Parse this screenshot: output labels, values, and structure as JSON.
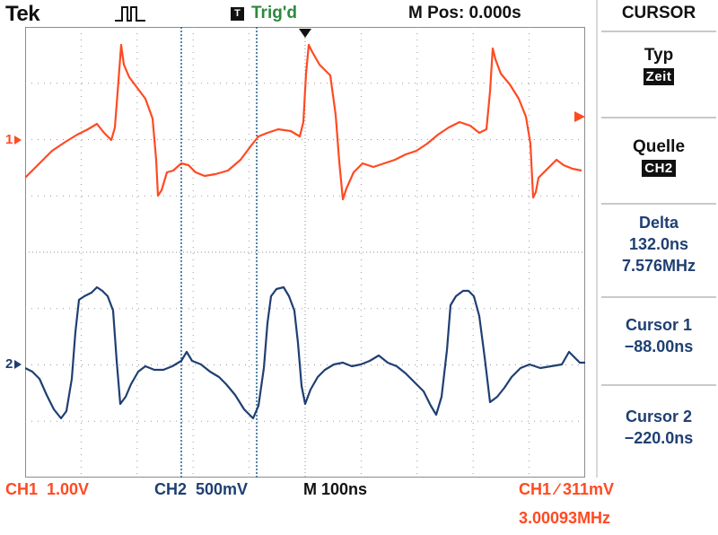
{
  "header": {
    "brand": "Tek",
    "acquisition_icon": "pulse-run-icon",
    "trigger_badge": "T",
    "trigger_status": "Trig'd",
    "main_position": "M Pos: 0.000s"
  },
  "menu": {
    "title": "CURSOR",
    "type_label": "Typ",
    "type_value": "Zeit",
    "source_label": "Quelle",
    "source_value": "CH2",
    "delta_label": "Delta",
    "delta_time": "132.0ns",
    "delta_freq": "7.576MHz",
    "cursor1_label": "Cursor 1",
    "cursor1_value": "−88.00ns",
    "cursor2_label": "Cursor 2",
    "cursor2_value": "−220.0ns"
  },
  "screen": {
    "ch1_marker": "1",
    "ch2_marker": "2",
    "colors": {
      "ch1": "#ff4a22",
      "ch2": "#1f3f73",
      "cursor": "#1f5f8f",
      "grid": "#9a9a9a"
    }
  },
  "status_bar": {
    "ch1_scale": "CH1  1.00V",
    "ch2_scale": "CH2  500mV",
    "timebase": "M 100ns",
    "trigger": "CH1 ∕ 311mV",
    "frequency": "3.00093MHz"
  }
}
